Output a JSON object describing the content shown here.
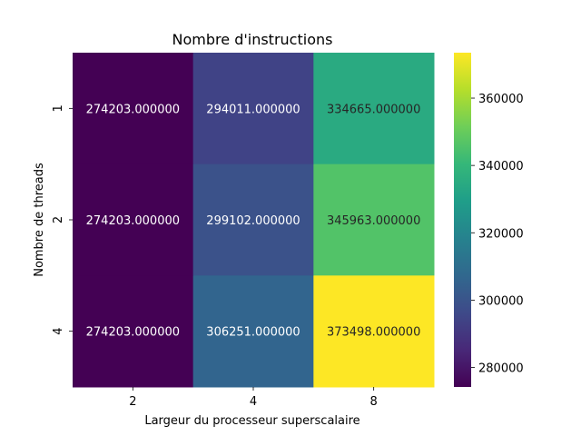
{
  "chart_data": {
    "type": "heatmap",
    "title": "Nombre d'instructions",
    "xlabel": "Largeur du processeur superscalaire",
    "ylabel": "Nombre de threads",
    "x_categories": [
      "2",
      "4",
      "8"
    ],
    "y_categories": [
      "1",
      "2",
      "4"
    ],
    "values": [
      [
        274203,
        294011,
        334665
      ],
      [
        274203,
        299102,
        345963
      ],
      [
        274203,
        306251,
        373498
      ]
    ],
    "cell_labels": [
      [
        "274203.000000",
        "294011.000000",
        "334665.000000"
      ],
      [
        "274203.000000",
        "299102.000000",
        "345963.000000"
      ],
      [
        "274203.000000",
        "306251.000000",
        "373498.000000"
      ]
    ],
    "colormap": "viridis",
    "color_range": [
      274203,
      373498
    ],
    "colorbar_ticks": [
      280000,
      300000,
      320000,
      340000,
      360000
    ],
    "colorbar_tick_labels": [
      "280000",
      "300000",
      "320000",
      "340000",
      "360000"
    ],
    "grid": false,
    "legend": "colorbar-right"
  }
}
